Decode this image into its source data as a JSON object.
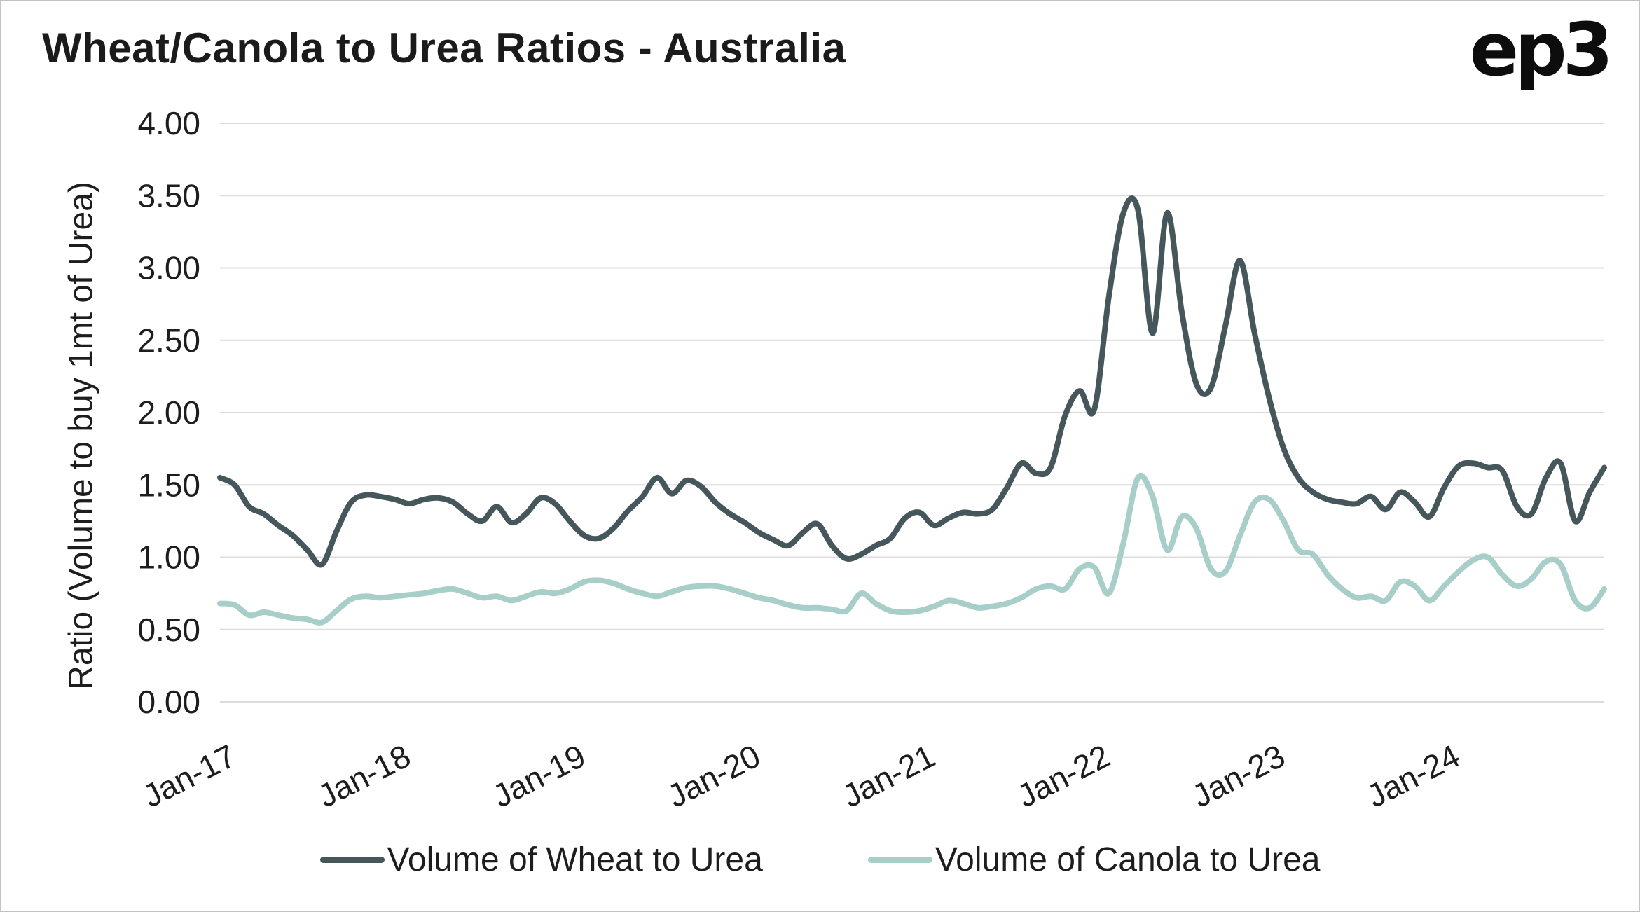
{
  "page": {
    "logo_text": "ep3"
  },
  "chart_data": {
    "type": "line",
    "title": "Wheat/Canola to Urea Ratios - Australia",
    "xlabel": "",
    "ylabel": "Ratio (Volume to buy 1mt of Urea)",
    "ylim": [
      0,
      4
    ],
    "ytick_step": 0.5,
    "ytick_labels": [
      "0.00",
      "0.50",
      "1.00",
      "1.50",
      "2.00",
      "2.50",
      "3.00",
      "3.50",
      "4.00"
    ],
    "xtick_labels": [
      "Jan-17",
      "Jan-18",
      "Jan-19",
      "Jan-20",
      "Jan-21",
      "Jan-22",
      "Jan-23",
      "Jan-24"
    ],
    "x_interval": "monthly",
    "x_start": "Jan-17",
    "x_end": "Dec-24",
    "grid": true,
    "gridline_color": "#dcdcdc",
    "legend_position": "bottom",
    "series": [
      {
        "name": "Volume of Wheat to Urea",
        "color": "#46575b",
        "values": [
          1.55,
          1.5,
          1.35,
          1.3,
          1.22,
          1.15,
          1.05,
          0.95,
          1.18,
          1.38,
          1.43,
          1.42,
          1.4,
          1.37,
          1.4,
          1.41,
          1.38,
          1.3,
          1.25,
          1.35,
          1.24,
          1.3,
          1.41,
          1.37,
          1.25,
          1.15,
          1.13,
          1.2,
          1.32,
          1.42,
          1.55,
          1.44,
          1.53,
          1.49,
          1.38,
          1.3,
          1.24,
          1.17,
          1.12,
          1.08,
          1.17,
          1.23,
          1.08,
          0.99,
          1.02,
          1.08,
          1.13,
          1.27,
          1.31,
          1.22,
          1.27,
          1.31,
          1.3,
          1.33,
          1.48,
          1.65,
          1.58,
          1.62,
          1.98,
          2.15,
          2.02,
          2.8,
          3.38,
          3.4,
          2.55,
          3.38,
          2.7,
          2.2,
          2.17,
          2.6,
          3.05,
          2.55,
          2.1,
          1.75,
          1.55,
          1.45,
          1.4,
          1.38,
          1.37,
          1.42,
          1.33,
          1.45,
          1.38,
          1.28,
          1.48,
          1.63,
          1.65,
          1.62,
          1.6,
          1.35,
          1.3,
          1.55,
          1.65,
          1.25,
          1.45,
          1.62
        ]
      },
      {
        "name": "Volume of Canola to Urea",
        "color": "#a7cec8",
        "values": [
          0.68,
          0.67,
          0.6,
          0.62,
          0.6,
          0.58,
          0.57,
          0.55,
          0.63,
          0.71,
          0.73,
          0.72,
          0.73,
          0.74,
          0.75,
          0.77,
          0.78,
          0.75,
          0.72,
          0.73,
          0.7,
          0.73,
          0.76,
          0.75,
          0.78,
          0.83,
          0.84,
          0.82,
          0.78,
          0.75,
          0.73,
          0.76,
          0.79,
          0.8,
          0.8,
          0.78,
          0.75,
          0.72,
          0.7,
          0.67,
          0.65,
          0.65,
          0.64,
          0.63,
          0.75,
          0.68,
          0.63,
          0.62,
          0.63,
          0.66,
          0.7,
          0.68,
          0.65,
          0.66,
          0.68,
          0.72,
          0.78,
          0.8,
          0.78,
          0.92,
          0.93,
          0.75,
          1.1,
          1.55,
          1.42,
          1.05,
          1.28,
          1.2,
          0.92,
          0.9,
          1.15,
          1.38,
          1.4,
          1.25,
          1.05,
          1.02,
          0.88,
          0.78,
          0.72,
          0.73,
          0.7,
          0.83,
          0.8,
          0.7,
          0.8,
          0.9,
          0.98,
          1.0,
          0.88,
          0.8,
          0.85,
          0.97,
          0.95,
          0.7,
          0.65,
          0.78
        ]
      }
    ],
    "text_color": "#1d1d1d"
  }
}
